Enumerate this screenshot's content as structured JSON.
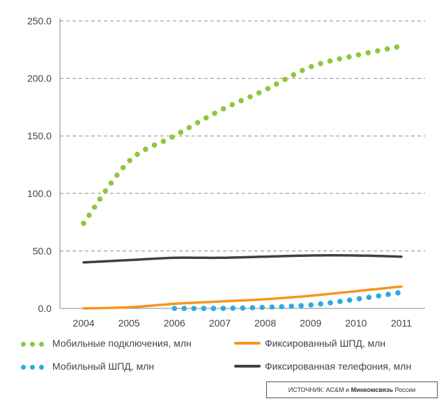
{
  "chart_data": {
    "type": "line",
    "categories": [
      "2004",
      "2005",
      "2006",
      "2007",
      "2008",
      "2009",
      "2010",
      "2011"
    ],
    "ylim": [
      0,
      250
    ],
    "yticks": [
      "0.0",
      "50.0",
      "100.0",
      "150.0",
      "200.0",
      "250.0"
    ],
    "grid": "horizontal dashed",
    "series": [
      {
        "name": "Мобильные подключения, млн",
        "style": "dotted",
        "color": "#8dc63f",
        "values": [
          74,
          128,
          150,
          172,
          190,
          210,
          220,
          228
        ]
      },
      {
        "name": "Фиксированный ШПД, млн",
        "style": "solid",
        "color": "#f7941d",
        "values": [
          0,
          1,
          4,
          6,
          8,
          11,
          15,
          19
        ]
      },
      {
        "name": "Мобильный ШПД, млн",
        "style": "dotted",
        "color": "#29abe2",
        "values": [
          null,
          null,
          0,
          0,
          1,
          3,
          8,
          14
        ]
      },
      {
        "name": "Фиксированная телефония, млн",
        "style": "solid",
        "color": "#404040",
        "values": [
          40,
          42,
          44,
          44,
          45,
          46,
          46,
          45
        ]
      }
    ]
  },
  "source": {
    "prefix": "ИСТОЧНИК: AC&M и ",
    "bold": "Минкомсвязь",
    "suffix": " России"
  }
}
